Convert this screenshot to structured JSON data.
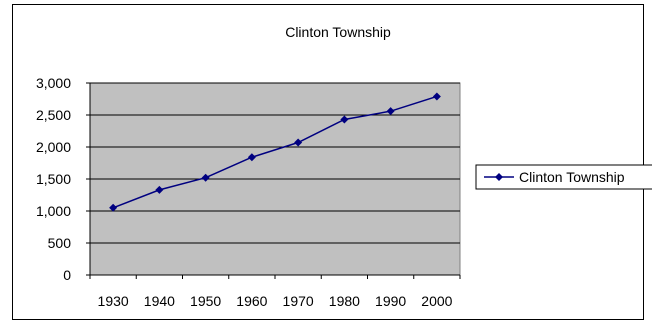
{
  "chart_data": {
    "type": "line",
    "title": "Clinton Township",
    "xlabel": "",
    "ylabel": "",
    "categories": [
      "1930",
      "1940",
      "1950",
      "1960",
      "1970",
      "1980",
      "1990",
      "2000"
    ],
    "series": [
      {
        "name": "Clinton Township",
        "values": [
          1050,
          1330,
          1520,
          1840,
          2070,
          2430,
          2560,
          2790
        ]
      }
    ],
    "ylim": [
      0,
      3000
    ],
    "yticks": [
      0,
      500,
      1000,
      1500,
      2000,
      2500,
      3000
    ],
    "ytick_labels": [
      "0",
      "500",
      "1,000",
      "1,500",
      "2,000",
      "2,500",
      "3,000"
    ],
    "grid": true,
    "legend_position": "right",
    "colors": {
      "series": "#000080",
      "plot_background": "#c0c0c0",
      "gridline": "#000000"
    }
  }
}
